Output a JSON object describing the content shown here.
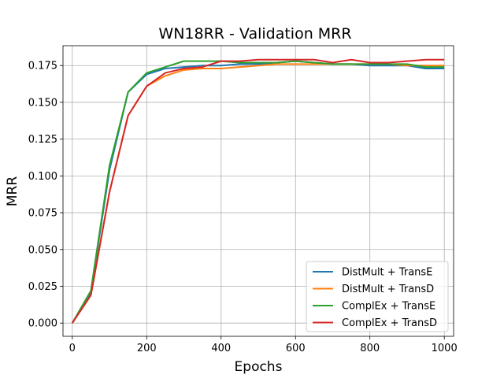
{
  "chart_data": {
    "type": "line",
    "title": "WN18RR - Validation MRR",
    "xlabel": "Epochs",
    "ylabel": "MRR",
    "xlim": [
      -25,
      1025
    ],
    "ylim": [
      -0.009,
      0.1885
    ],
    "x_ticks": [
      0,
      200,
      400,
      600,
      800,
      1000
    ],
    "x_tick_labels": [
      "0",
      "200",
      "400",
      "600",
      "800",
      "1000"
    ],
    "y_ticks": [
      0.0,
      0.025,
      0.05,
      0.075,
      0.1,
      0.125,
      0.15,
      0.175
    ],
    "y_tick_labels": [
      "0.000",
      "0.025",
      "0.050",
      "0.075",
      "0.100",
      "0.125",
      "0.150",
      "0.175"
    ],
    "grid": true,
    "legend_position": "lower-right",
    "x": [
      0,
      50,
      100,
      150,
      200,
      250,
      300,
      350,
      400,
      450,
      500,
      550,
      600,
      650,
      700,
      750,
      800,
      850,
      900,
      950,
      1000
    ],
    "series": [
      {
        "name": "DistMult + TransE",
        "color": "#1f77b4",
        "values": [
          0.0,
          0.021,
          0.104,
          0.157,
          0.169,
          0.173,
          0.174,
          0.175,
          0.175,
          0.176,
          0.176,
          0.177,
          0.178,
          0.177,
          0.176,
          0.176,
          0.175,
          0.175,
          0.175,
          0.173,
          0.173
        ]
      },
      {
        "name": "DistMult + TransD",
        "color": "#ff7f0e",
        "values": [
          0.0,
          0.019,
          0.089,
          0.141,
          0.161,
          0.168,
          0.172,
          0.173,
          0.173,
          0.174,
          0.175,
          0.176,
          0.176,
          0.176,
          0.176,
          0.176,
          0.176,
          0.176,
          0.175,
          0.175,
          0.175
        ]
      },
      {
        "name": "ComplEx + TransE",
        "color": "#2ca02c",
        "values": [
          0.0,
          0.022,
          0.107,
          0.157,
          0.17,
          0.174,
          0.178,
          0.178,
          0.178,
          0.177,
          0.177,
          0.177,
          0.178,
          0.177,
          0.176,
          0.176,
          0.176,
          0.176,
          0.176,
          0.174,
          0.174
        ]
      },
      {
        "name": "ComplEx + TransD",
        "color": "#d62728",
        "values": [
          0.0,
          0.019,
          0.089,
          0.141,
          0.161,
          0.17,
          0.173,
          0.174,
          0.178,
          0.178,
          0.179,
          0.179,
          0.179,
          0.179,
          0.177,
          0.179,
          0.177,
          0.177,
          0.178,
          0.179,
          0.179
        ]
      }
    ]
  }
}
